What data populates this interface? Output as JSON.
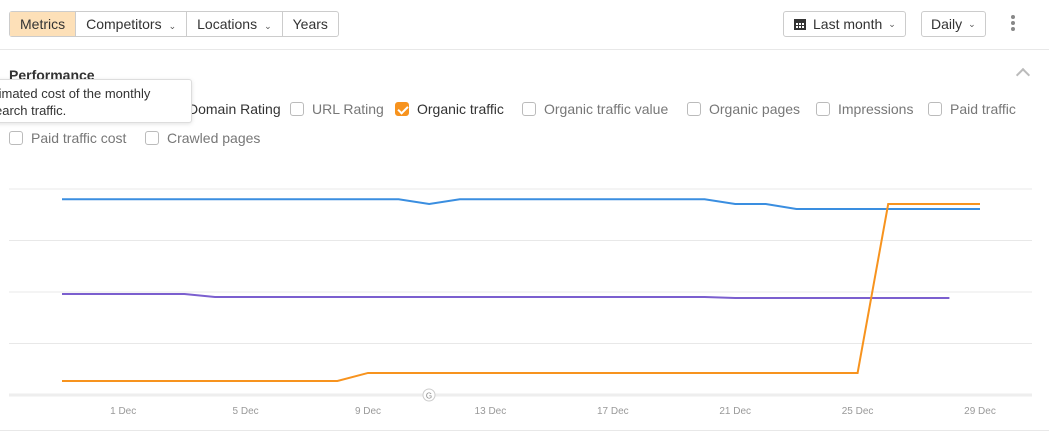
{
  "toolbar": {
    "tabs": [
      {
        "label": "Metrics",
        "active": true
      },
      {
        "label": "Competitors",
        "dropdown": true
      },
      {
        "label": "Locations",
        "dropdown": true
      },
      {
        "label": "Years"
      }
    ],
    "date_range": "Last month",
    "granularity": "Daily",
    "calendar_icon": "calendar-icon",
    "more_icon": "kebab-menu-icon"
  },
  "section": {
    "title": "Performance",
    "collapse_icon": "chevron-up-icon"
  },
  "tooltip": {
    "text_line1": "timated cost of the monthly",
    "text_line2": "earch traffic."
  },
  "metrics": [
    {
      "label": "Domain Rating",
      "checked": true
    },
    {
      "label": "URL Rating",
      "checked": false
    },
    {
      "label": "Organic traffic",
      "checked": true
    },
    {
      "label": "Organic traffic value",
      "checked": false
    },
    {
      "label": "Organic pages",
      "checked": false
    },
    {
      "label": "Impressions",
      "checked": false
    },
    {
      "label": "Paid traffic",
      "checked": false
    },
    {
      "label": "Paid traffic cost",
      "checked": false
    },
    {
      "label": "Crawled pages",
      "checked": false
    }
  ],
  "colors": {
    "accent": "#f7931e",
    "blue": "#3a8ee0",
    "purple": "#7b5fcf",
    "grid": "#e8e8e8"
  },
  "chart_data": {
    "type": "line",
    "x": [
      "29 Nov",
      "30 Nov",
      "1 Dec",
      "2 Dec",
      "3 Dec",
      "4 Dec",
      "5 Dec",
      "6 Dec",
      "7 Dec",
      "8 Dec",
      "9 Dec",
      "10 Dec",
      "11 Dec",
      "12 Dec",
      "13 Dec",
      "14 Dec",
      "15 Dec",
      "16 Dec",
      "17 Dec",
      "18 Dec",
      "19 Dec",
      "20 Dec",
      "21 Dec",
      "22 Dec",
      "23 Dec",
      "24 Dec",
      "25 Dec",
      "26 Dec",
      "27 Dec",
      "28 Dec",
      "29 Dec"
    ],
    "xticks": [
      "1 Dec",
      "5 Dec",
      "9 Dec",
      "13 Dec",
      "17 Dec",
      "21 Dec",
      "25 Dec",
      "29 Dec"
    ],
    "ylim": [
      0,
      100
    ],
    "grid": true,
    "y_axis_labels_shown": false,
    "annotation": "G",
    "series": [
      {
        "color": "#3a8ee0",
        "values": [
          95,
          95,
          95,
          95,
          95,
          95,
          95,
          95,
          95,
          95,
          95,
          95,
          92.7,
          95,
          95,
          95,
          95,
          95,
          95,
          95,
          95,
          95,
          92.7,
          92.7,
          90.3,
          90.3,
          90.3,
          90.3,
          90.3,
          90.3,
          90.3
        ]
      },
      {
        "color": "#7b5fcf",
        "values": [
          49,
          49,
          49,
          49,
          49,
          47.6,
          47.6,
          47.6,
          47.6,
          47.6,
          47.6,
          47.6,
          47.6,
          47.6,
          47.6,
          47.6,
          47.6,
          47.6,
          47.6,
          47.6,
          47.6,
          47.6,
          47.1,
          47.1,
          47.1,
          47.1,
          47.1,
          47.1,
          47.1,
          47.1,
          null
        ]
      },
      {
        "color": "#f7931e",
        "values": [
          6.8,
          6.8,
          6.8,
          6.8,
          6.8,
          6.8,
          6.8,
          6.8,
          6.8,
          6.8,
          10.7,
          10.7,
          10.7,
          10.7,
          10.7,
          10.7,
          10.7,
          10.7,
          10.7,
          10.7,
          10.7,
          10.7,
          10.7,
          10.7,
          10.7,
          10.7,
          10.7,
          92.7,
          92.7,
          92.7,
          92.7
        ]
      }
    ]
  }
}
